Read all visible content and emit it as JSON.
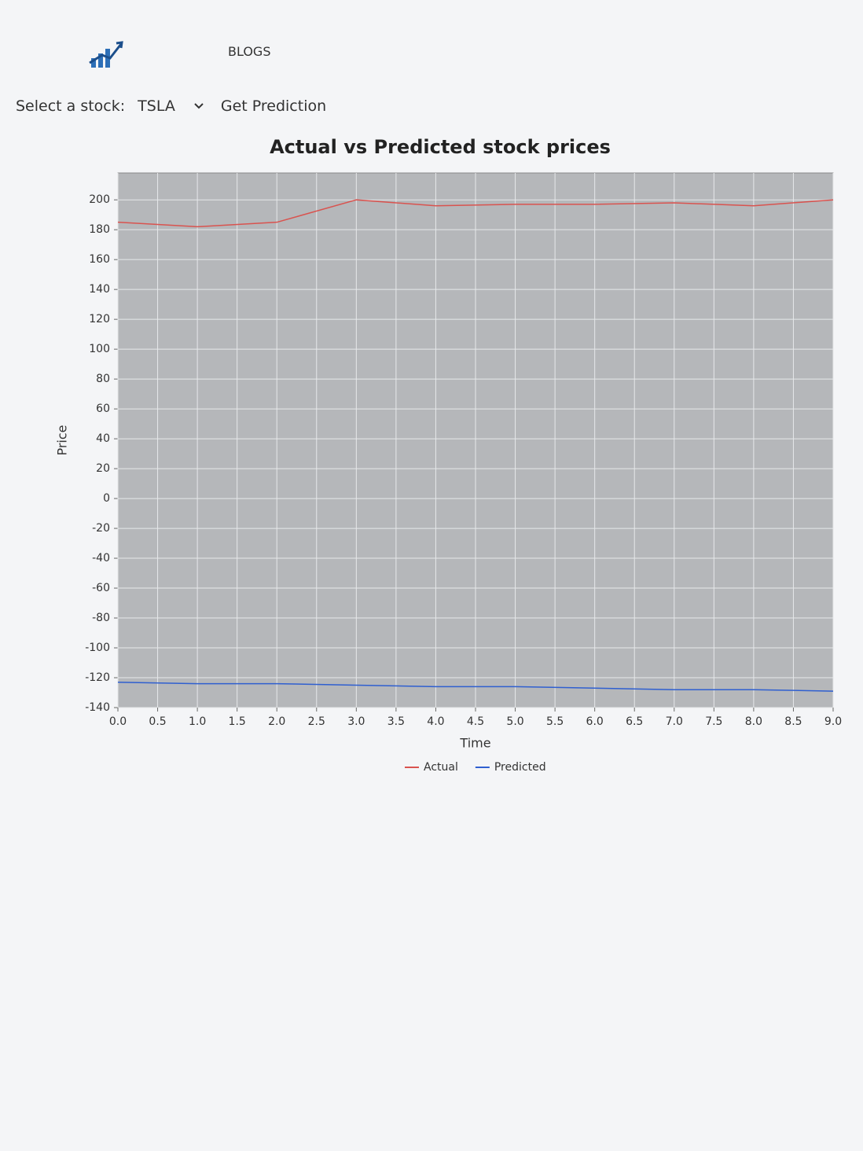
{
  "header": {
    "nav": "BLOGS"
  },
  "form": {
    "label": "Select a stock:",
    "selected": "TSLA",
    "button": "Get Prediction"
  },
  "chart_data": {
    "type": "line",
    "title": "Actual vs Predicted stock prices",
    "x_label": "Time",
    "y_label": "Price",
    "x": [
      0,
      1,
      2,
      3,
      4,
      5,
      6,
      7,
      8,
      9
    ],
    "series": [
      {
        "name": "Actual",
        "color": "#d9534f",
        "values": [
          185,
          182,
          185,
          200,
          196,
          197,
          197,
          198,
          196,
          200
        ]
      },
      {
        "name": "Predicted",
        "color": "#2f5fd0",
        "values": [
          -123,
          -124,
          -124,
          -125,
          -126,
          -126,
          -127,
          -128,
          -128,
          -129
        ]
      }
    ],
    "xlim": [
      0,
      9
    ],
    "xticks": [
      {
        "value": 0,
        "label": "0.0"
      },
      0.5,
      {
        "value": 1,
        "label": "1.0"
      },
      1.5,
      {
        "value": 2,
        "label": "2.0"
      },
      2.5,
      {
        "value": 3,
        "label": "3.0"
      },
      3.5,
      {
        "value": 4,
        "label": "4.0"
      },
      4.5,
      {
        "value": 5,
        "label": "5.0"
      },
      5.5,
      {
        "value": 6,
        "label": "6.0"
      },
      6.5,
      {
        "value": 7,
        "label": "7.0"
      },
      7.5,
      {
        "value": 8,
        "label": "8.0"
      },
      8.5,
      {
        "value": 9,
        "label": "9.0"
      }
    ],
    "ylim": [
      -140,
      218
    ],
    "yticks": [
      -140,
      -120,
      -100,
      -80,
      -60,
      -40,
      -20,
      0,
      20,
      40,
      60,
      80,
      100,
      120,
      140,
      160,
      180,
      200
    ],
    "grid": true,
    "legend": "bottom"
  }
}
